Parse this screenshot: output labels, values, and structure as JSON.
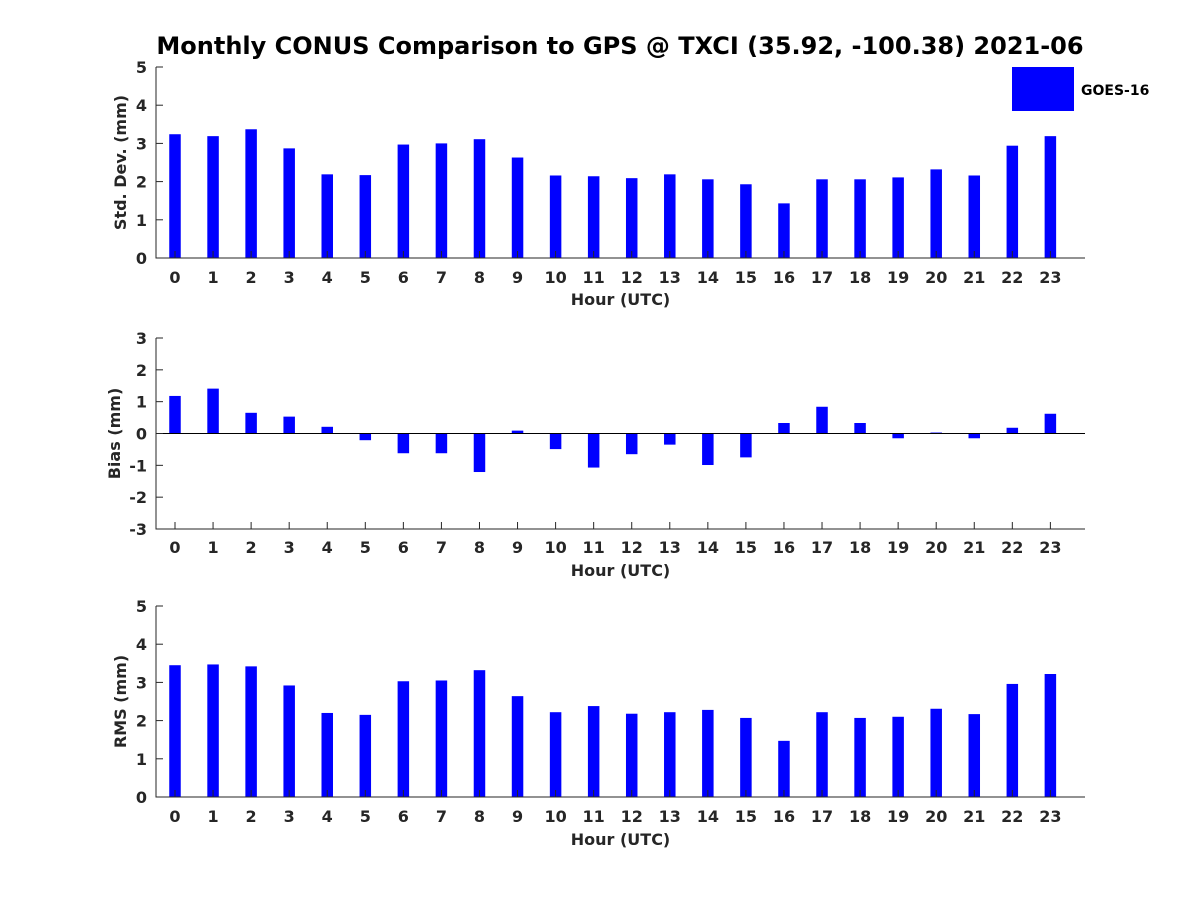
{
  "title": "Monthly CONUS Comparison to GPS @ TXCI (35.92, -100.38) 2021-06",
  "legend": {
    "label": "GOES-16",
    "color": "#0000ff",
    "position": "top-right"
  },
  "chart_data": [
    {
      "type": "bar",
      "xlabel": "Hour (UTC)",
      "ylabel": "Std. Dev. (mm)",
      "ylim": [
        0,
        5
      ],
      "yticks": [
        "0",
        "1",
        "2",
        "3",
        "4",
        "5"
      ],
      "categories": [
        "0",
        "1",
        "2",
        "3",
        "4",
        "5",
        "6",
        "7",
        "8",
        "9",
        "10",
        "11",
        "12",
        "13",
        "14",
        "15",
        "16",
        "17",
        "18",
        "19",
        "20",
        "21",
        "22",
        "23"
      ],
      "series": [
        {
          "name": "GOES-16",
          "color": "#0000ff",
          "values": [
            3.24,
            3.19,
            3.37,
            2.87,
            2.19,
            2.17,
            2.97,
            3.0,
            3.11,
            2.63,
            2.16,
            2.14,
            2.09,
            2.19,
            2.06,
            1.93,
            1.43,
            2.06,
            2.06,
            2.11,
            2.32,
            2.16,
            2.94,
            3.19
          ]
        }
      ]
    },
    {
      "type": "bar",
      "xlabel": "Hour (UTC)",
      "ylabel": "Bias (mm)",
      "ylim": [
        -3,
        3
      ],
      "yticks": [
        "-3",
        "-2",
        "-1",
        "0",
        "1",
        "2",
        "3"
      ],
      "categories": [
        "0",
        "1",
        "2",
        "3",
        "4",
        "5",
        "6",
        "7",
        "8",
        "9",
        "10",
        "11",
        "12",
        "13",
        "14",
        "15",
        "16",
        "17",
        "18",
        "19",
        "20",
        "21",
        "22",
        "23"
      ],
      "series": [
        {
          "name": "GOES-16",
          "color": "#0000ff",
          "values": [
            1.18,
            1.41,
            0.65,
            0.53,
            0.21,
            -0.21,
            -0.62,
            -0.62,
            -1.21,
            0.09,
            -0.49,
            -1.07,
            -0.65,
            -0.35,
            -0.99,
            -0.75,
            0.33,
            0.84,
            0.33,
            -0.15,
            0.03,
            -0.15,
            0.18,
            0.62
          ]
        }
      ]
    },
    {
      "type": "bar",
      "xlabel": "Hour (UTC)",
      "ylabel": "RMS (mm)",
      "ylim": [
        0,
        5
      ],
      "yticks": [
        "0",
        "1",
        "2",
        "3",
        "4",
        "5"
      ],
      "categories": [
        "0",
        "1",
        "2",
        "3",
        "4",
        "5",
        "6",
        "7",
        "8",
        "9",
        "10",
        "11",
        "12",
        "13",
        "14",
        "15",
        "16",
        "17",
        "18",
        "19",
        "20",
        "21",
        "22",
        "23"
      ],
      "series": [
        {
          "name": "GOES-16",
          "color": "#0000ff",
          "values": [
            3.45,
            3.47,
            3.42,
            2.92,
            2.2,
            2.15,
            3.03,
            3.05,
            3.32,
            2.64,
            2.22,
            2.38,
            2.18,
            2.22,
            2.28,
            2.07,
            1.47,
            2.22,
            2.07,
            2.1,
            2.31,
            2.17,
            2.96,
            3.22
          ]
        }
      ]
    }
  ]
}
